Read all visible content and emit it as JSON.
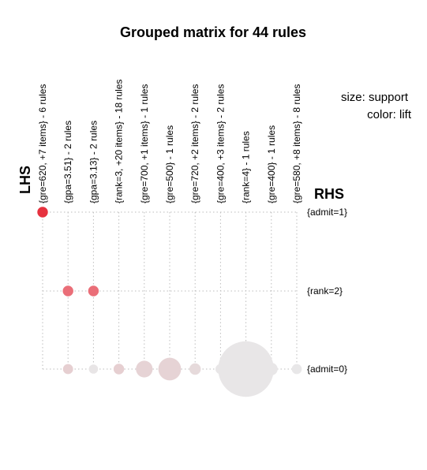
{
  "chart_data": {
    "type": "scatter",
    "title": "Grouped matrix for 44 rules",
    "xlabel": "LHS",
    "ylabel": "RHS",
    "size_legend": "size: support",
    "color_legend": "color: lift",
    "lhs_groups": [
      "{gre=620, +7 items} - 6 rules",
      "{gpa=3.51} - 2 rules",
      "{gpa=3.13} - 2 rules",
      "{rank=3, +20 items} - 18 rules",
      "{gre=700, +1 items} - 1 rules",
      "{gre=500} - 1 rules",
      "{gre=720, +2 items} - 2 rules",
      "{gre=400, +3 items} - 2 rules",
      "{rank=4} - 1 rules",
      "{gre=400} - 1 rules",
      "{gre=580, +8 items} - 8 rules"
    ],
    "rhs_items": [
      "{admit=1}",
      "{rank=2}",
      "{admit=0}"
    ],
    "points": [
      {
        "lhs": 0,
        "rhs": 0,
        "support": 0.42,
        "lift": 1.0,
        "color": "#e6323f"
      },
      {
        "lhs": 1,
        "rhs": 1,
        "support": 0.42,
        "lift": 0.7,
        "color": "#ea6e78"
      },
      {
        "lhs": 2,
        "rhs": 1,
        "support": 0.42,
        "lift": 0.7,
        "color": "#ea6e78"
      },
      {
        "lhs": 1,
        "rhs": 2,
        "support": 0.4,
        "lift": 0.15,
        "color": "#e6cfd1"
      },
      {
        "lhs": 2,
        "rhs": 2,
        "support": 0.36,
        "lift": 0.02,
        "color": "#e8e5e6"
      },
      {
        "lhs": 3,
        "rhs": 2,
        "support": 0.42,
        "lift": 0.15,
        "color": "#e6cfd1"
      },
      {
        "lhs": 4,
        "rhs": 2,
        "support": 0.66,
        "lift": 0.12,
        "color": "#e6d3d5"
      },
      {
        "lhs": 5,
        "rhs": 2,
        "support": 0.9,
        "lift": 0.12,
        "color": "#e6d3d5"
      },
      {
        "lhs": 6,
        "rhs": 2,
        "support": 0.45,
        "lift": 0.08,
        "color": "#e6dadb"
      },
      {
        "lhs": 7,
        "rhs": 2,
        "support": 0.4,
        "lift": 0.02,
        "color": "#e8e6e7"
      },
      {
        "lhs": 8,
        "rhs": 2,
        "support": 2.2,
        "lift": 0.02,
        "color": "#e8e6e7"
      },
      {
        "lhs": 9,
        "rhs": 2,
        "support": 0.5,
        "lift": 0.02,
        "color": "#e8e6e7"
      },
      {
        "lhs": 10,
        "rhs": 2,
        "support": 0.4,
        "lift": 0.01,
        "color": "#e8e7e8"
      }
    ]
  }
}
